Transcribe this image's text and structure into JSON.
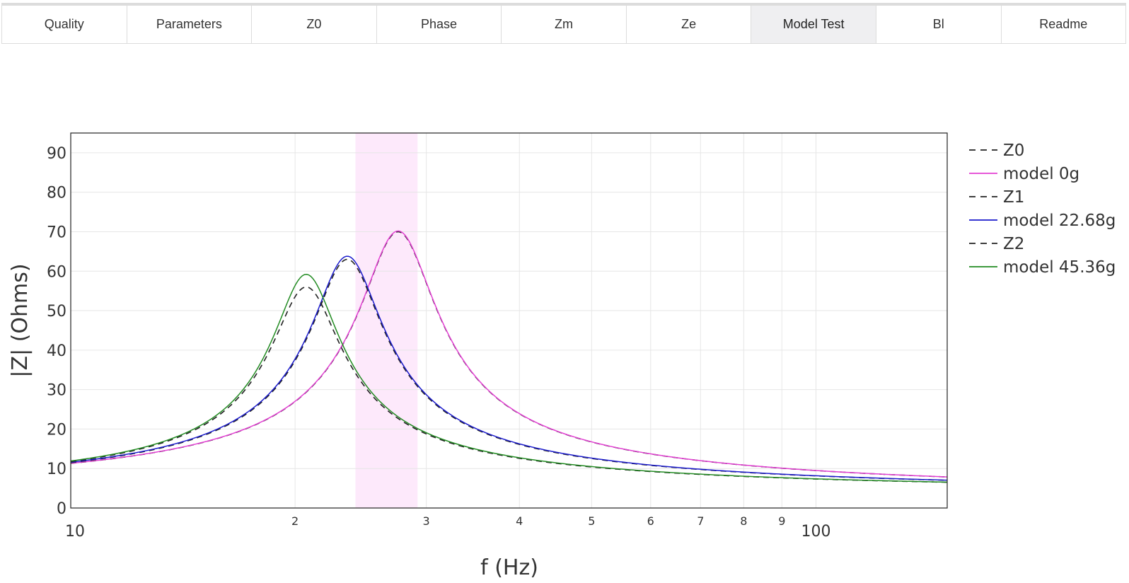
{
  "tabs": [
    {
      "label": "Quality",
      "active": false
    },
    {
      "label": "Parameters",
      "active": false
    },
    {
      "label": "Z0",
      "active": false
    },
    {
      "label": "Phase",
      "active": false
    },
    {
      "label": "Zm",
      "active": false
    },
    {
      "label": "Ze",
      "active": false
    },
    {
      "label": "Model Test",
      "active": true
    },
    {
      "label": "Bl",
      "active": false
    },
    {
      "label": "Readme",
      "active": false
    }
  ],
  "chart_data": {
    "type": "line",
    "xlabel": "f (Hz)",
    "ylabel": "|Z| (Ohms)",
    "xscale": "log",
    "xlim": [
      10,
      150
    ],
    "ylim": [
      0,
      95
    ],
    "grid": true,
    "legend_position": "right",
    "x_ticks": [
      {
        "value": 10,
        "label": "10"
      },
      {
        "value": 20,
        "label": "2"
      },
      {
        "value": 30,
        "label": "3"
      },
      {
        "value": 40,
        "label": "4"
      },
      {
        "value": 50,
        "label": "5"
      },
      {
        "value": 60,
        "label": "6"
      },
      {
        "value": 70,
        "label": "7"
      },
      {
        "value": 80,
        "label": "8"
      },
      {
        "value": 90,
        "label": "9"
      },
      {
        "value": 100,
        "label": "100"
      }
    ],
    "y_ticks": [
      0,
      10,
      20,
      30,
      40,
      50,
      60,
      70,
      80,
      90
    ],
    "highlight_band": {
      "x": [
        24.1,
        29.2
      ],
      "color": "#fde9fb"
    },
    "series": [
      {
        "name": "Z0",
        "color": "#222222",
        "dash": true,
        "fres": 27.5,
        "peak": 70.0,
        "q": 4.3,
        "re": 5.0
      },
      {
        "name": "model 0g",
        "color": "#e23fd2",
        "dash": false,
        "fres": 27.5,
        "peak": 70.2,
        "q": 4.3,
        "re": 5.0
      },
      {
        "name": "Z1",
        "color": "#222222",
        "dash": true,
        "fres": 23.5,
        "peak": 63.0,
        "q": 4.6,
        "re": 5.0
      },
      {
        "name": "model 22.68g",
        "color": "#1a1acc",
        "dash": false,
        "fres": 23.5,
        "peak": 63.8,
        "q": 4.6,
        "re": 5.0
      },
      {
        "name": "Z2",
        "color": "#222222",
        "dash": true,
        "fres": 20.7,
        "peak": 56.0,
        "q": 4.7,
        "re": 5.0
      },
      {
        "name": "model 45.36g",
        "color": "#228b22",
        "dash": false,
        "fres": 20.7,
        "peak": 59.2,
        "q": 4.9,
        "re": 5.0
      }
    ]
  }
}
